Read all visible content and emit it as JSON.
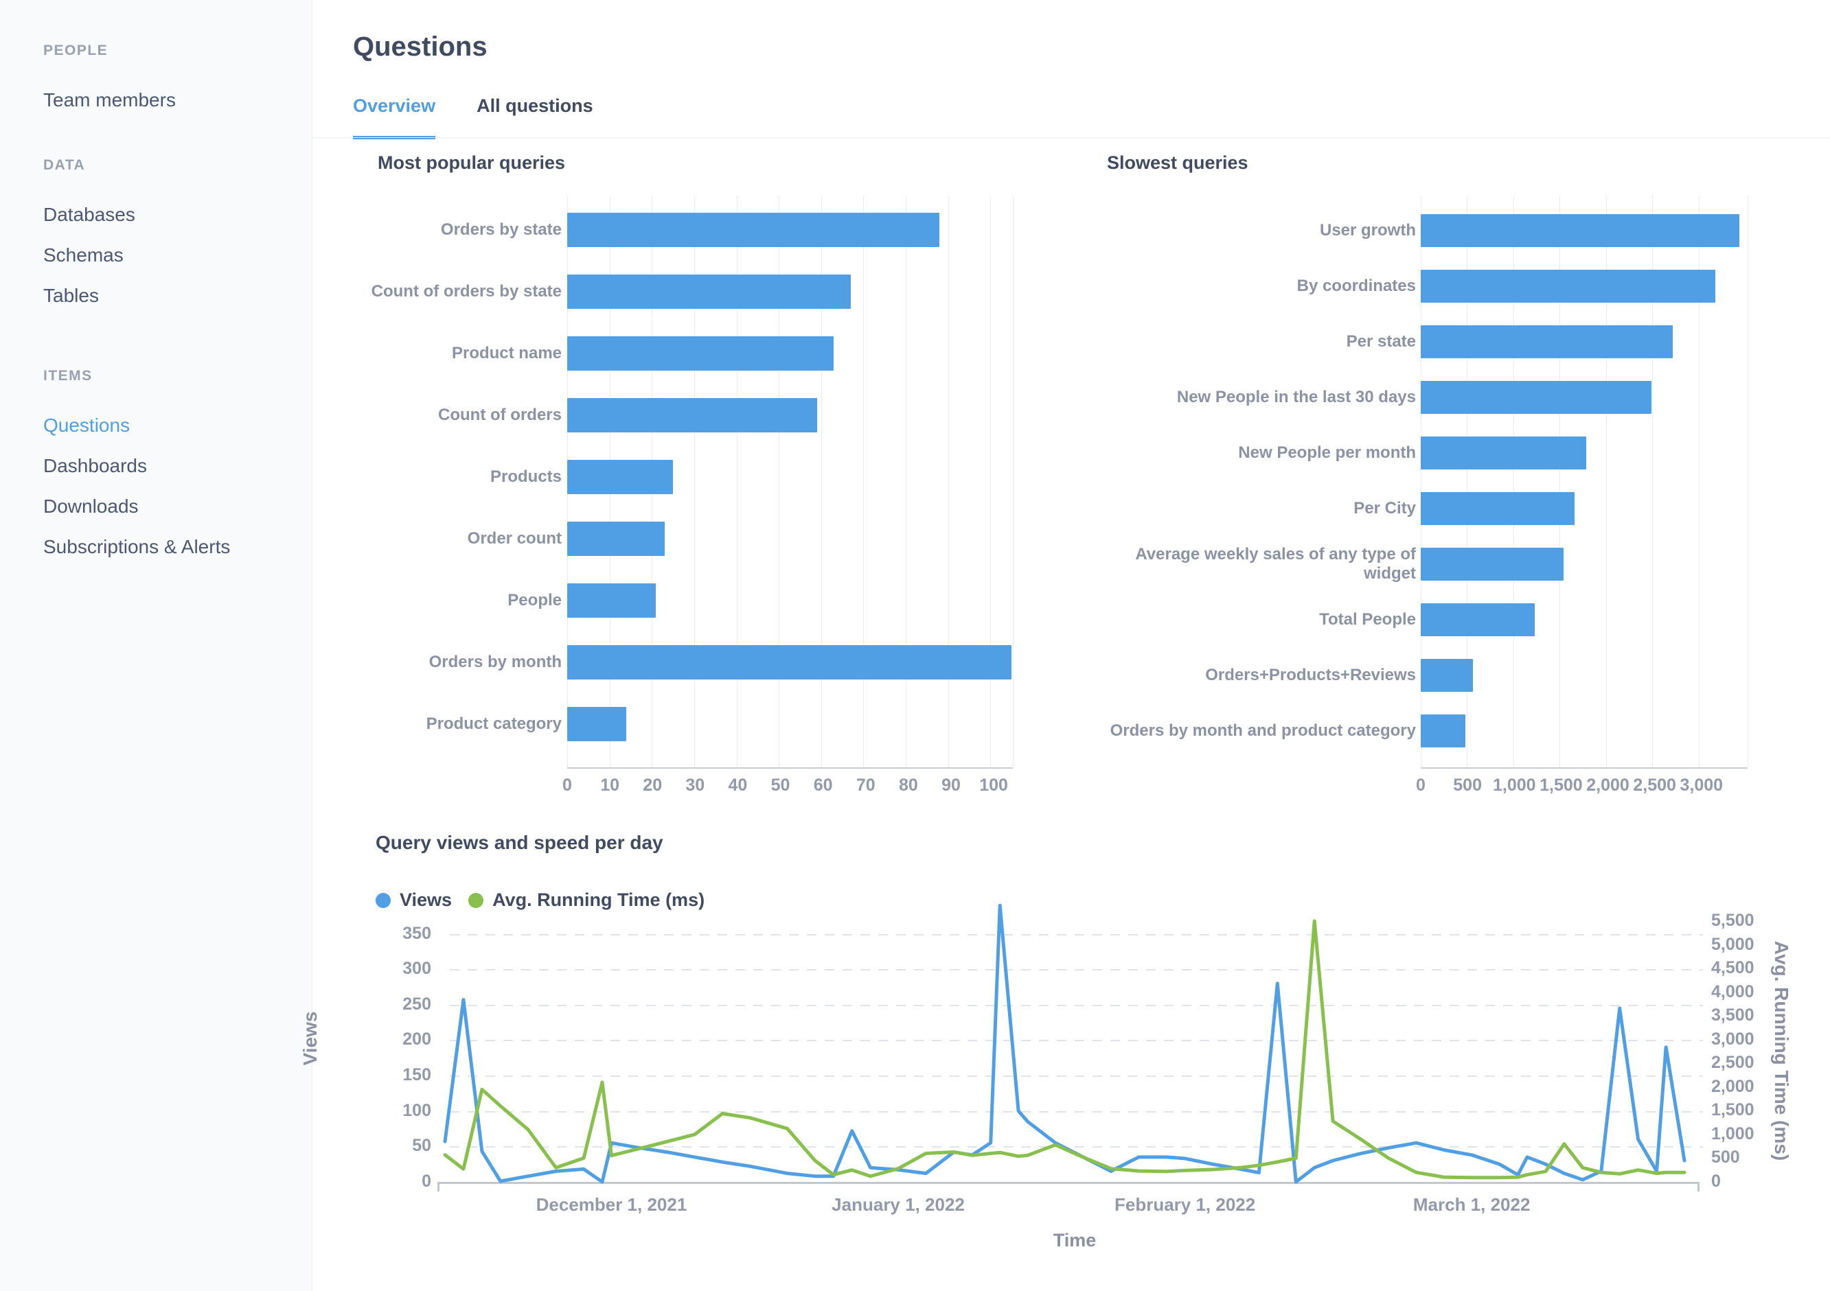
{
  "accent_color": "#509EE3",
  "sidebar": {
    "sections": [
      {
        "label": "PEOPLE",
        "items": [
          {
            "label": "Team members",
            "active": false
          }
        ]
      },
      {
        "label": "DATA",
        "items": [
          {
            "label": "Databases",
            "active": false
          },
          {
            "label": "Schemas",
            "active": false
          },
          {
            "label": "Tables",
            "active": false
          }
        ]
      },
      {
        "label": "ITEMS",
        "items": [
          {
            "label": "Questions",
            "active": true
          },
          {
            "label": "Dashboards",
            "active": false
          },
          {
            "label": "Downloads",
            "active": false
          },
          {
            "label": "Subscriptions & Alerts",
            "active": false
          }
        ]
      }
    ]
  },
  "header": {
    "title": "Questions",
    "tabs": [
      {
        "label": "Overview",
        "active": true
      },
      {
        "label": "All questions",
        "active": false
      }
    ]
  },
  "chart_data": [
    {
      "type": "bar",
      "orientation": "horizontal",
      "title": "Most popular queries",
      "categories": [
        "Orders by state",
        "Count of orders by state",
        "Product name",
        "Count of orders",
        "Products",
        "Order count",
        "People",
        "Orders by month",
        "Product category"
      ],
      "values": [
        88,
        67,
        63,
        59,
        25,
        23,
        21,
        105,
        14
      ],
      "xlim": [
        0,
        105.3
      ],
      "ticks": [
        {
          "v": 0,
          "label": "0"
        },
        {
          "v": 10,
          "label": "10"
        },
        {
          "v": 20,
          "label": "20"
        },
        {
          "v": 30,
          "label": "30"
        },
        {
          "v": 40,
          "label": "40"
        },
        {
          "v": 50,
          "label": "50"
        },
        {
          "v": 60,
          "label": "60"
        },
        {
          "v": 70,
          "label": "70"
        },
        {
          "v": 80,
          "label": "80"
        },
        {
          "v": 90,
          "label": "90"
        },
        {
          "v": 100,
          "label": "100"
        }
      ],
      "bar_color": "#509EE3",
      "grid": "vertical-per-tick"
    },
    {
      "type": "bar",
      "orientation": "horizontal",
      "title": "Slowest queries",
      "categories": [
        "User growth",
        "By coordinates",
        "Per state",
        "New People in the last 30 days",
        "New People per month",
        "Per City",
        "Average weekly sales of any type of widget",
        "Total People",
        "Orders+Products+Reviews",
        "Orders by month and product category"
      ],
      "values": [
        3440,
        3180,
        2720,
        2490,
        1790,
        1660,
        1540,
        1230,
        560,
        480
      ],
      "xlim": [
        0,
        3530
      ],
      "ticks": [
        {
          "v": 0,
          "label": "0"
        },
        {
          "v": 500,
          "label": "500"
        },
        {
          "v": 1000,
          "label": "1,000"
        },
        {
          "v": 1500,
          "label": "1,500"
        },
        {
          "v": 2000,
          "label": "2,000"
        },
        {
          "v": 2500,
          "label": "2,500"
        },
        {
          "v": 3000,
          "label": "3,000"
        }
      ],
      "bar_color": "#509EE3",
      "grid": "vertical-per-tick"
    },
    {
      "type": "line",
      "title": "Query views and speed per day",
      "xlabel": "Time",
      "ylabel_left": "Views",
      "ylabel_right": "Avg. Running Time (ms)",
      "x_unit": "days from first point (mid-November 2021)",
      "x_range": [
        0,
        134
      ],
      "x_ticks": [
        {
          "d": 18,
          "label": "December 1, 2021"
        },
        {
          "d": 49,
          "label": "January 1, 2022"
        },
        {
          "d": 80,
          "label": "February 1, 2022"
        },
        {
          "d": 111,
          "label": "March 1, 2022"
        }
      ],
      "ylim_left": [
        0,
        399
      ],
      "y_left_ticks": [
        0,
        50,
        100,
        150,
        200,
        250,
        300,
        350
      ],
      "ylim_right": [
        0,
        5975
      ],
      "y_right_ticks": [
        {
          "v": 0,
          "label": "0"
        },
        {
          "v": 500,
          "label": "500"
        },
        {
          "v": 1000,
          "label": "1,000"
        },
        {
          "v": 1500,
          "label": "1,500"
        },
        {
          "v": 2000,
          "label": "2,000"
        },
        {
          "v": 2500,
          "label": "2,500"
        },
        {
          "v": 3000,
          "label": "3,000"
        },
        {
          "v": 3500,
          "label": "3,500"
        },
        {
          "v": 4000,
          "label": "4,000"
        },
        {
          "v": 4500,
          "label": "4,500"
        },
        {
          "v": 5000,
          "label": "5,000"
        },
        {
          "v": 5500,
          "label": "5,500"
        }
      ],
      "grid": "horizontal-dashed",
      "legend_position": "top-left",
      "x": [
        0,
        2,
        4,
        6,
        9,
        12,
        15,
        17,
        18,
        21,
        24,
        27,
        30,
        33,
        37,
        40,
        42,
        44,
        46,
        49,
        52,
        55,
        57,
        59,
        60,
        62,
        63,
        66,
        69,
        72,
        75,
        78,
        80,
        83,
        86,
        88,
        90,
        92,
        94,
        96,
        99,
        102,
        105,
        108,
        111,
        114,
        116,
        117,
        119,
        121,
        123,
        125,
        127,
        129,
        131,
        132,
        134
      ],
      "series": [
        {
          "name": "Views",
          "axis": "left",
          "color": "#509EE3",
          "values": [
            57,
            257,
            43,
            1,
            8,
            15,
            18,
            0,
            55,
            48,
            42,
            35,
            28,
            22,
            12,
            8,
            8,
            72,
            20,
            17,
            12,
            42,
            38,
            55,
            390,
            100,
            85,
            55,
            35,
            15,
            35,
            35,
            33,
            25,
            18,
            13,
            280,
            0,
            20,
            30,
            40,
            48,
            55,
            45,
            38,
            25,
            10,
            35,
            25,
            12,
            3,
            15,
            245,
            60,
            15,
            190,
            30
          ]
        },
        {
          "name": "Avg. Running Time (ms)",
          "axis": "right",
          "color": "#88BF4D",
          "values": [
            570,
            270,
            1950,
            1600,
            1100,
            300,
            500,
            2100,
            555,
            700,
            850,
            1000,
            1440,
            1350,
            1125,
            450,
            150,
            250,
            120,
            280,
            600,
            630,
            560,
            600,
            620,
            540,
            560,
            780,
            520,
            280,
            230,
            220,
            240,
            260,
            300,
            350,
            420,
            500,
            5500,
            1280,
            900,
            500,
            200,
            100,
            90,
            90,
            100,
            150,
            220,
            800,
            300,
            200,
            170,
            250,
            180,
            200,
            200
          ]
        }
      ]
    }
  ]
}
